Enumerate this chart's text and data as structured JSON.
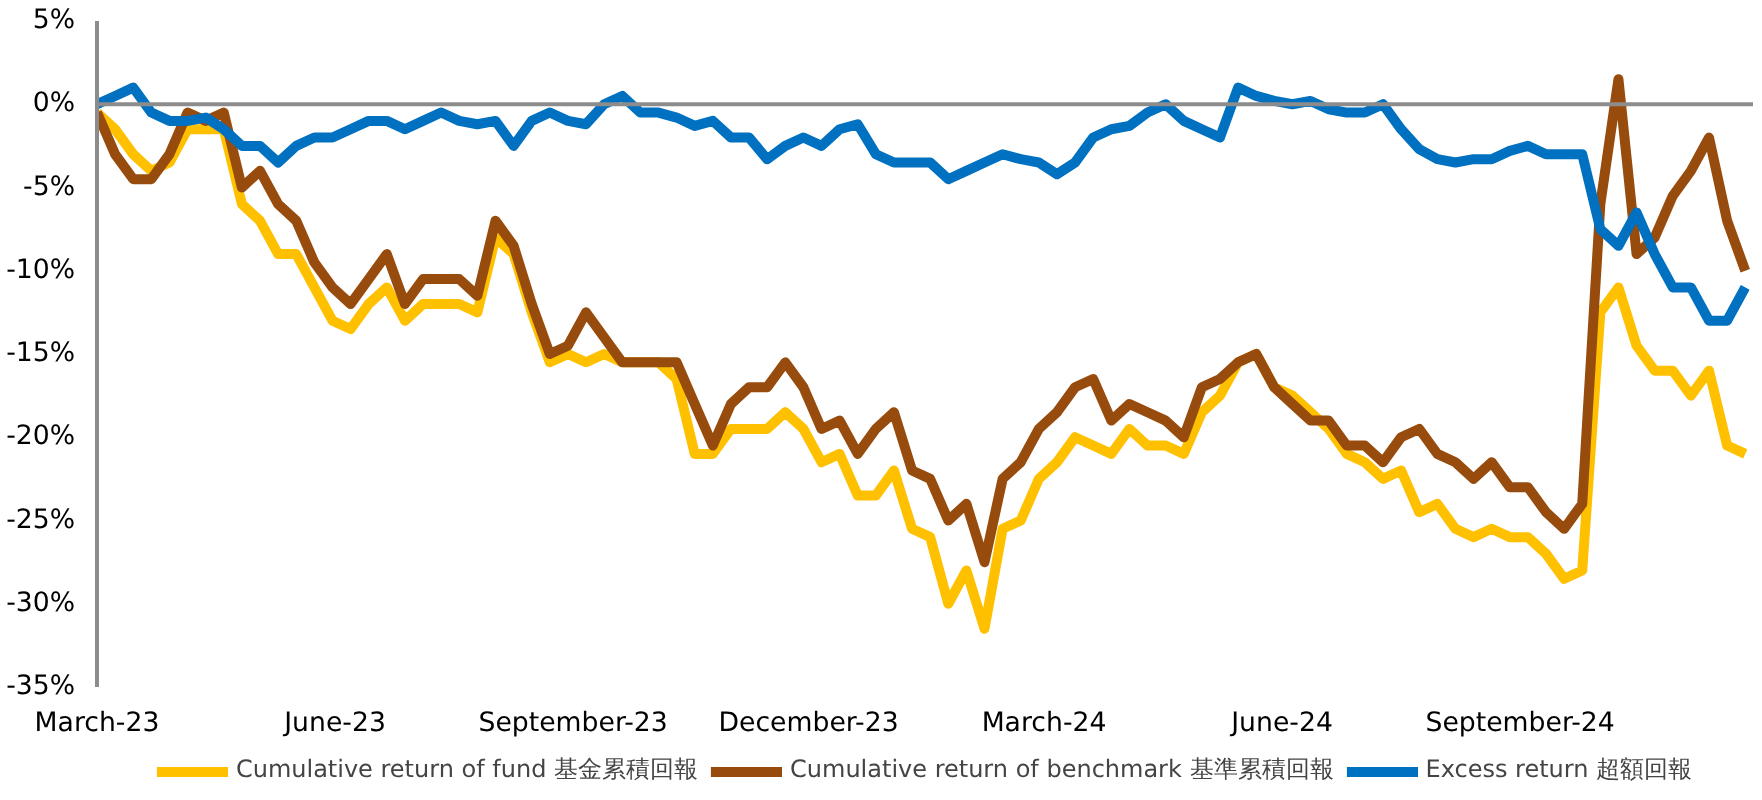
{
  "chart_data": {
    "type": "line",
    "x": [
      "2023-03-01",
      "2023-03-08",
      "2023-03-15",
      "2023-03-22",
      "2023-03-29",
      "2023-04-05",
      "2023-04-12",
      "2023-04-19",
      "2023-04-26",
      "2023-05-03",
      "2023-05-10",
      "2023-05-17",
      "2023-05-24",
      "2023-05-31",
      "2023-06-07",
      "2023-06-14",
      "2023-06-21",
      "2023-06-28",
      "2023-07-05",
      "2023-07-12",
      "2023-07-19",
      "2023-07-26",
      "2023-08-02",
      "2023-08-09",
      "2023-08-16",
      "2023-08-23",
      "2023-08-30",
      "2023-09-06",
      "2023-09-13",
      "2023-09-20",
      "2023-09-27",
      "2023-10-04",
      "2023-10-11",
      "2023-10-18",
      "2023-10-25",
      "2023-11-01",
      "2023-11-08",
      "2023-11-15",
      "2023-11-22",
      "2023-11-29",
      "2023-12-06",
      "2023-12-13",
      "2023-12-20",
      "2023-12-27",
      "2024-01-03",
      "2024-01-10",
      "2024-01-17",
      "2024-01-24",
      "2024-01-31",
      "2024-02-07",
      "2024-02-14",
      "2024-02-21",
      "2024-02-28",
      "2024-03-06",
      "2024-03-13",
      "2024-03-20",
      "2024-03-27",
      "2024-04-03",
      "2024-04-10",
      "2024-04-17",
      "2024-04-24",
      "2024-05-01",
      "2024-05-08",
      "2024-05-15",
      "2024-05-22",
      "2024-05-29",
      "2024-06-05",
      "2024-06-12",
      "2024-06-19",
      "2024-06-26",
      "2024-07-03",
      "2024-07-10",
      "2024-07-17",
      "2024-07-24",
      "2024-07-31",
      "2024-08-07",
      "2024-08-14",
      "2024-08-21",
      "2024-08-28",
      "2024-09-04",
      "2024-09-11",
      "2024-09-18",
      "2024-09-25",
      "2024-10-02",
      "2024-10-09",
      "2024-10-16",
      "2024-10-23",
      "2024-10-30",
      "2024-11-06",
      "2024-11-13",
      "2024-11-20",
      "2024-11-27"
    ],
    "series": [
      {
        "name": "Cumulative return of fund 基金累積回報",
        "color": "#ffc000",
        "values": [
          -0.5,
          -1.5,
          -3,
          -4,
          -3.5,
          -1.5,
          -1.5,
          -1.5,
          -6,
          -7,
          -9,
          -9,
          -11,
          -13,
          -13.5,
          -12,
          -11,
          -13,
          -12,
          -12,
          -12,
          -12.5,
          -8,
          -9,
          -12.5,
          -15.5,
          -15,
          -15.5,
          -15,
          -15.5,
          -15.5,
          -15.5,
          -16.5,
          -21,
          -21,
          -19.5,
          -19.5,
          -19.5,
          -18.5,
          -19.5,
          -21.5,
          -21,
          -23.5,
          -23.5,
          -22,
          -25.5,
          -26,
          -30,
          -28,
          -31.5,
          -25.5,
          -25,
          -22.5,
          -21.5,
          -20,
          -20.5,
          -21,
          -19.5,
          -20.5,
          -20.5,
          -21,
          -18.5,
          -17.5,
          -15.5,
          -15,
          -17,
          -17.5,
          -18.5,
          -19.5,
          -21,
          -21.5,
          -22.5,
          -22,
          -24.5,
          -24,
          -25.5,
          -26,
          -25.5,
          -26,
          -26,
          -27,
          -28.5,
          -28,
          -12.5,
          -11,
          -14.5,
          -16,
          -16,
          -17.5,
          -16,
          -20.5,
          -21
        ]
      },
      {
        "name": "Cumulative return of benchmark 基準累積回報",
        "color": "#974b0c",
        "values": [
          -0.5,
          -3,
          -4.5,
          -4.5,
          -3,
          -0.5,
          -1,
          -0.5,
          -5,
          -4,
          -6,
          -7,
          -9.5,
          -11,
          -12,
          -10.5,
          -9,
          -12,
          -10.5,
          -10.5,
          -10.5,
          -11.5,
          -7,
          -8.5,
          -12,
          -15,
          -14.5,
          -12.5,
          -14,
          -15.5,
          -15.5,
          -15.5,
          -15.5,
          -18,
          -20.5,
          -18,
          -17,
          -17,
          -15.5,
          -17,
          -19.5,
          -19,
          -21,
          -19.5,
          -18.5,
          -22,
          -22.5,
          -25,
          -24,
          -27.5,
          -22.5,
          -21.5,
          -19.5,
          -18.5,
          -17,
          -16.5,
          -19,
          -18,
          -18.5,
          -19,
          -20,
          -17,
          -16.5,
          -15.5,
          -15,
          -17,
          -18,
          -19,
          -19,
          -20.5,
          -20.5,
          -21.5,
          -20,
          -19.5,
          -21,
          -21.5,
          -22.5,
          -21.5,
          -23,
          -23,
          -24.5,
          -25.5,
          -24,
          -6,
          1.5,
          -9,
          -8,
          -5.5,
          -4,
          -2,
          -7,
          -10
        ]
      },
      {
        "name": "Excess return 超額回報",
        "color": "#0070c0",
        "values": [
          0,
          0.5,
          1,
          -0.5,
          -1,
          -1,
          -0.8,
          -1.5,
          -2.5,
          -2.5,
          -3.5,
          -2.5,
          -2,
          -2,
          -1.5,
          -1,
          -1,
          -1.5,
          -1,
          -0.5,
          -1,
          -1.2,
          -1,
          -2.5,
          -1,
          -0.5,
          -1,
          -1.2,
          0,
          0.5,
          -0.5,
          -0.5,
          -0.8,
          -1.3,
          -1,
          -2,
          -2,
          -3.3,
          -2.5,
          -2,
          -2.5,
          -1.5,
          -1.2,
          -3,
          -3.5,
          -3.5,
          -3.5,
          -4.5,
          -4,
          -3.5,
          -3,
          -3.3,
          -3.5,
          -4.2,
          -3.5,
          -2,
          -1.5,
          -1.3,
          -0.5,
          0,
          -1,
          -1.5,
          -2,
          1,
          0.5,
          0.2,
          0,
          0.2,
          -0.3,
          -0.5,
          -0.5,
          0,
          -1.5,
          -2.7,
          -3.3,
          -3.5,
          -3.3,
          -3.3,
          -2.8,
          -2.5,
          -3,
          -3,
          -3,
          -7.5,
          -8.5,
          -6.5,
          -9,
          -11,
          -11,
          -13,
          -13,
          -11
        ]
      }
    ],
    "xlim": [
      "2023-03-01",
      "2024-11-30"
    ],
    "xticks": [
      {
        "value": "2023-03-01",
        "label": "March-23"
      },
      {
        "value": "2023-06-01",
        "label": "June-23"
      },
      {
        "value": "2023-09-01",
        "label": "September-23"
      },
      {
        "value": "2023-12-01",
        "label": "December-23"
      },
      {
        "value": "2024-03-01",
        "label": "March-24"
      },
      {
        "value": "2024-06-01",
        "label": "June-24"
      },
      {
        "value": "2024-09-01",
        "label": "September-24"
      }
    ],
    "ylim": [
      -35,
      5
    ],
    "yticks": [
      {
        "value": -35,
        "label": "-35%"
      },
      {
        "value": -30,
        "label": "-30%"
      },
      {
        "value": -25,
        "label": "-25%"
      },
      {
        "value": -20,
        "label": "-20%"
      },
      {
        "value": -15,
        "label": "-15%"
      },
      {
        "value": -10,
        "label": "-10%"
      },
      {
        "value": -5,
        "label": "-5%"
      },
      {
        "value": 0,
        "label": "0%"
      },
      {
        "value": 5,
        "label": "5%"
      }
    ],
    "ref_lines": [
      {
        "axis": "y",
        "value": 0,
        "color": "#8c8c8c"
      }
    ],
    "legend": "bottom",
    "grid": false,
    "line_style": "solid",
    "marker": "none"
  }
}
